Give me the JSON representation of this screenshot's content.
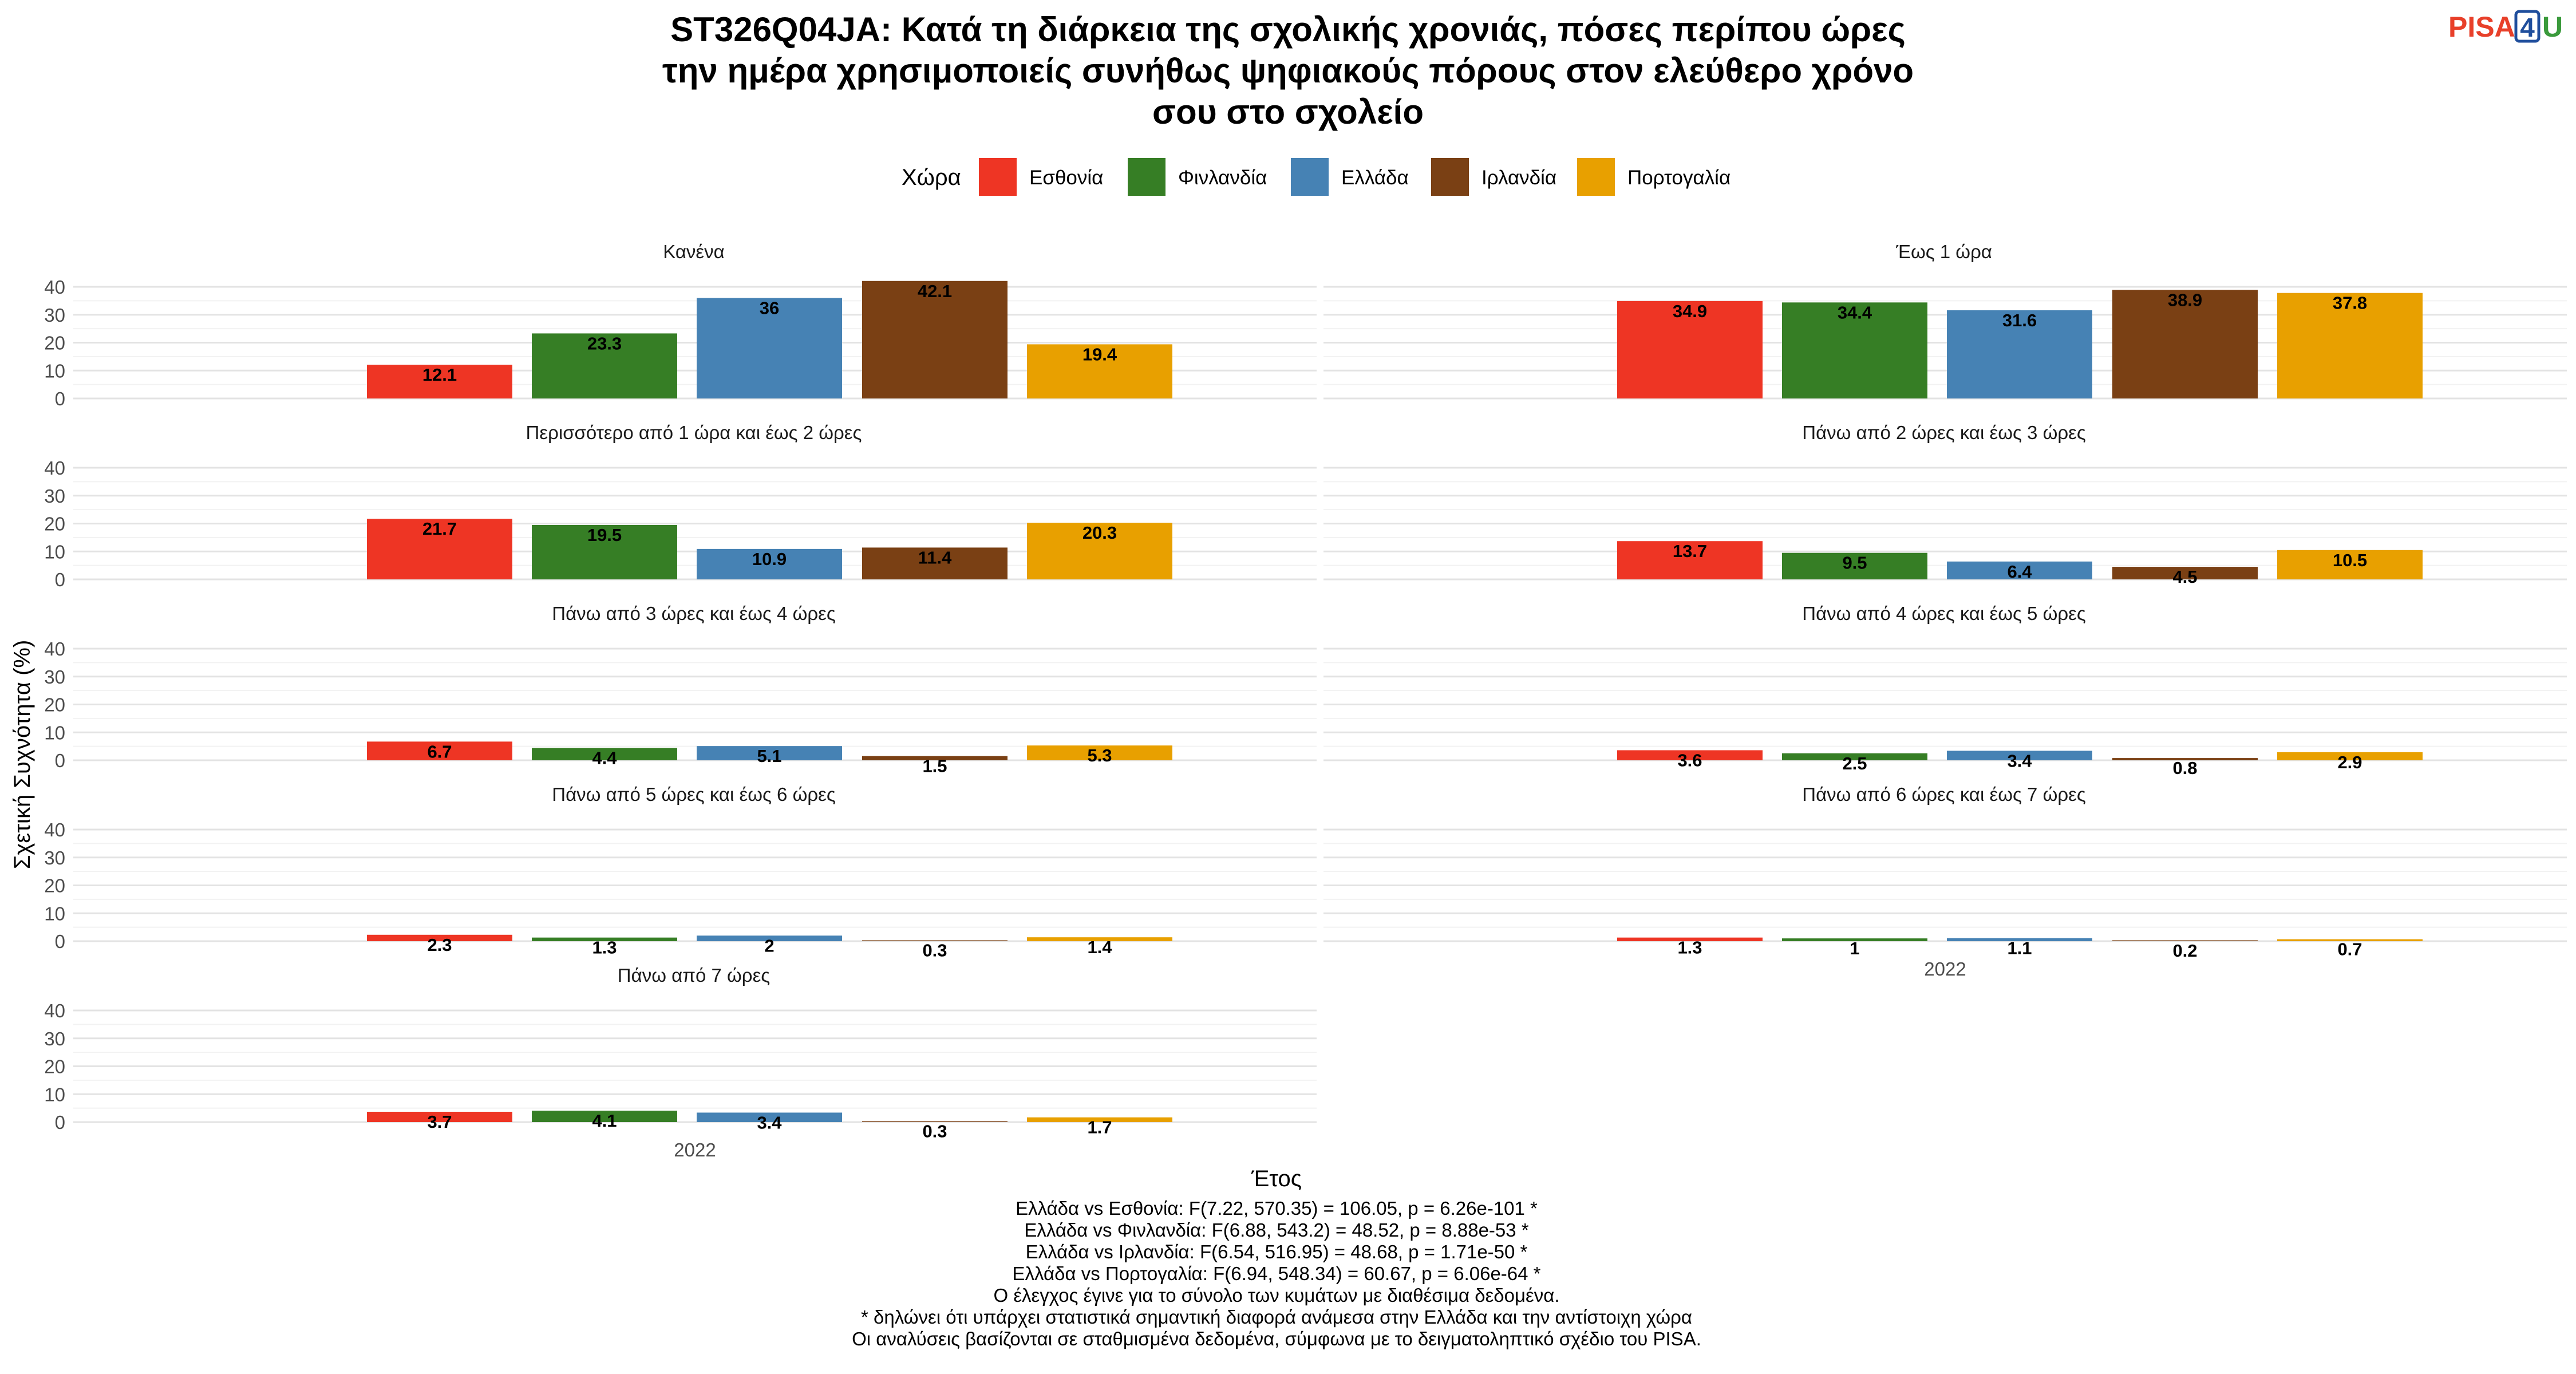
{
  "brand": {
    "logo_text": "PISA4U",
    "logo_colors": {
      "pisa": "#e8402a",
      "four": "#1f4e9c",
      "u": "#3a9a3c"
    }
  },
  "title_lines": [
    "ST326Q04JA: Κατά τη διάρκεια της σχολικής χρονιάς, πόσες περίπου ώρες",
    "την ημέρα χρησιμοποιείς συνήθως ψηφιακούς πόρους στον ελεύθερο χρόνο",
    "σου στο σχολείο"
  ],
  "footer_lines": [
    "Ελλάδα vs Εσθονία: F(7.22, 570.35) = 106.05, p = 6.26e-101 *",
    "Ελλάδα vs Φινλανδία: F(6.88, 543.2) = 48.52, p = 8.88e-53 *",
    "Ελλάδα vs Ιρλανδία: F(6.54, 516.95) = 48.68, p = 1.71e-50 *",
    "Ελλάδα vs Πορτογαλία: F(6.94, 548.34) = 60.67, p = 6.06e-64 *",
    "Ο έλεγχος έγινε για το σύνολο των κυμάτων με διαθέσιμα δεδομένα.",
    "* δηλώνει ότι υπάρχει στατιστικά σημαντική διαφορά ανάμεσα στην Ελλάδα και την αντίστοιχη χώρα",
    "Οι αναλύσεις βασίζονται σε σταθμισμένα δεδομένα, σύμφωνα με το δειγματοληπτικό σχέδιο του PISA."
  ],
  "chart_data": {
    "type": "bar",
    "title": "ST326Q04JA: Κατά τη διάρκεια της σχολικής χρονιάς, πόσες περίπου ώρες την ημέρα χρησιμοποιείς συνήθως ψηφιακούς πόρους στον ελεύθερο χρόνο σου στο σχολείο",
    "xlabel": "Έτος",
    "ylabel": "Σχετική Συχνότητα (%)",
    "x_category": "2022",
    "ylim": [
      0,
      40
    ],
    "yticks": [
      0,
      10,
      20,
      30,
      40
    ],
    "grid": true,
    "legend": {
      "title": "Χώρα",
      "placement": "top"
    },
    "series": [
      {
        "name": "Εσθονία",
        "color": "#ee3524"
      },
      {
        "name": "Φινλανδία",
        "color": "#367e25"
      },
      {
        "name": "Ελλάδα",
        "color": "#4682b4"
      },
      {
        "name": "Ιρλανδία",
        "color": "#7a4014"
      },
      {
        "name": "Πορτογαλία",
        "color": "#e8a000"
      }
    ],
    "facets": [
      {
        "title": "Κανένα",
        "values": [
          12.1,
          23.3,
          36,
          42.1,
          19.4
        ],
        "labels": [
          "12.1",
          "23.3",
          "36",
          "42.1",
          "19.4"
        ]
      },
      {
        "title": "Έως 1 ώρα",
        "values": [
          34.9,
          34.4,
          31.6,
          38.9,
          37.8
        ],
        "labels": [
          "34.9",
          "34.4",
          "31.6",
          "38.9",
          "37.8"
        ]
      },
      {
        "title": "Περισσότερο από 1 ώρα και έως 2 ώρες",
        "values": [
          21.7,
          19.5,
          10.9,
          11.4,
          20.3
        ],
        "labels": [
          "21.7",
          "19.5",
          "10.9",
          "11.4",
          "20.3"
        ]
      },
      {
        "title": "Πάνω από 2 ώρες και έως 3 ώρες",
        "values": [
          13.7,
          9.5,
          6.4,
          4.5,
          10.5
        ],
        "labels": [
          "13.7",
          "9.5",
          "6.4",
          "4.5",
          "10.5"
        ]
      },
      {
        "title": "Πάνω από 3 ώρες και έως 4 ώρες",
        "values": [
          6.7,
          4.4,
          5.1,
          1.5,
          5.3
        ],
        "labels": [
          "6.7",
          "4.4",
          "5.1",
          "1.5",
          "5.3"
        ]
      },
      {
        "title": "Πάνω από 4 ώρες και έως 5 ώρες",
        "values": [
          3.6,
          2.5,
          3.4,
          0.8,
          2.9
        ],
        "labels": [
          "3.6",
          "2.5",
          "3.4",
          "0.8",
          "2.9"
        ]
      },
      {
        "title": "Πάνω από 5 ώρες και έως 6 ώρες",
        "values": [
          2.3,
          1.3,
          2,
          0.3,
          1.4
        ],
        "labels": [
          "2.3",
          "1.3",
          "2",
          "0.3",
          "1.4"
        ]
      },
      {
        "title": "Πάνω από 6 ώρες και έως 7 ώρες",
        "values": [
          1.3,
          1,
          1.1,
          0.2,
          0.7
        ],
        "labels": [
          "1.3",
          "1",
          "1.1",
          "0.2",
          "0.7"
        ]
      },
      {
        "title": "Πάνω από 7 ώρες",
        "values": [
          3.7,
          4.1,
          3.4,
          0.3,
          1.7
        ],
        "labels": [
          "3.7",
          "4.1",
          "3.4",
          "0.3",
          "1.7"
        ]
      }
    ]
  }
}
